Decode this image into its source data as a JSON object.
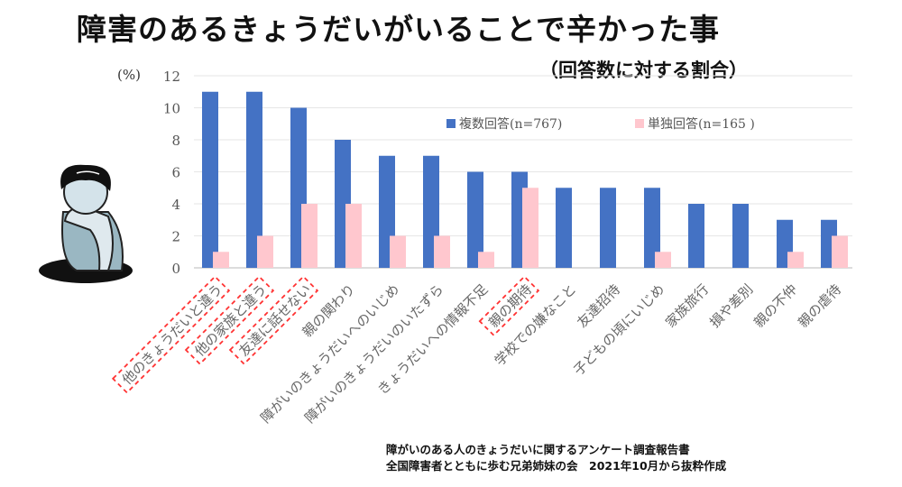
{
  "chart_data": {
    "type": "bar",
    "title": "障害のあるきょうだいがいることで辛かった事",
    "subtitle": "（回答数に対する割合）",
    "ylabel": "(%)",
    "ylim": [
      0,
      12
    ],
    "yticks": [
      0,
      2,
      4,
      6,
      8,
      10,
      12
    ],
    "grid": true,
    "legend_position": "top-right",
    "categories": [
      "他のきょうだいと違う",
      "他の家族と違う",
      "友達に話せない",
      "親の関わり",
      "障がいのきょうだいへのいじめ",
      "障がいのきょうだいのいたずら",
      "きょうだいへの情報不足",
      "親の期待",
      "学校での嫌なこと",
      "友達招待",
      "子どもの頃にいじめ",
      "家族旅行",
      "損や差別",
      "親の不仲",
      "親の虐待"
    ],
    "highlighted": [
      0,
      1,
      2,
      7
    ],
    "series": [
      {
        "name": "複数回答(n=767)",
        "color": "#4472C4",
        "values": [
          11,
          11,
          10,
          8,
          7,
          7,
          6,
          6,
          5,
          5,
          5,
          4,
          4,
          3,
          3
        ]
      },
      {
        "name": "単独回答(n=165 )",
        "color": "#FFC7CE",
        "values": [
          1,
          2,
          4,
          4,
          2,
          2,
          1,
          5,
          0,
          0,
          1,
          0,
          0,
          1,
          2
        ]
      }
    ],
    "source_lines": [
      "障がいのある人のきょうだいに関するアンケート調査報告書",
      "全国障害者とともに歩む兄弟姉妹の会　2021年10月から抜粋作成"
    ]
  }
}
